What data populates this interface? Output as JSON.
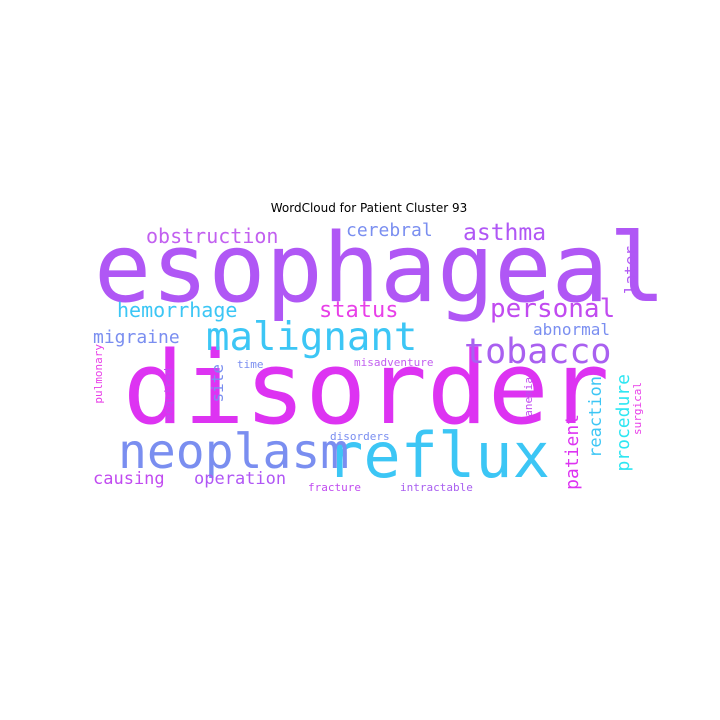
{
  "title": "WordCloud for Patient Cluster 93",
  "words": {
    "esophageal": "esophageal",
    "disorder": "disorder",
    "reflux": "reflux",
    "neoplasm": "neoplasm",
    "malignant": "malignant",
    "tobacco": "tobacco",
    "personal": "personal",
    "status": "status",
    "hemorrhage": "hemorrhage",
    "obstruction": "obstruction",
    "asthma": "asthma",
    "cerebral": "cerebral",
    "migraine": "migraine",
    "abnormal": "abnormal",
    "causing": "causing",
    "operation": "operation",
    "reaction": "reaction",
    "procedure": "procedure",
    "patient": "patient",
    "later": "later",
    "site": "site",
    "pulmonary": "pulmonary",
    "acquired": "acquired",
    "time": "time",
    "misadventure": "misadventure",
    "disorders": "disorders",
    "fracture": "fracture",
    "intractable": "intractable",
    "anemia": "anemia",
    "surgical": "surgical"
  },
  "palette": {
    "purple": "#b057f5",
    "magenta": "#dd33f2",
    "cyan": "#3cc6f5",
    "blue": "#7a8ef0",
    "pink": "#e83fe8",
    "aqua": "#2ee6f2"
  }
}
